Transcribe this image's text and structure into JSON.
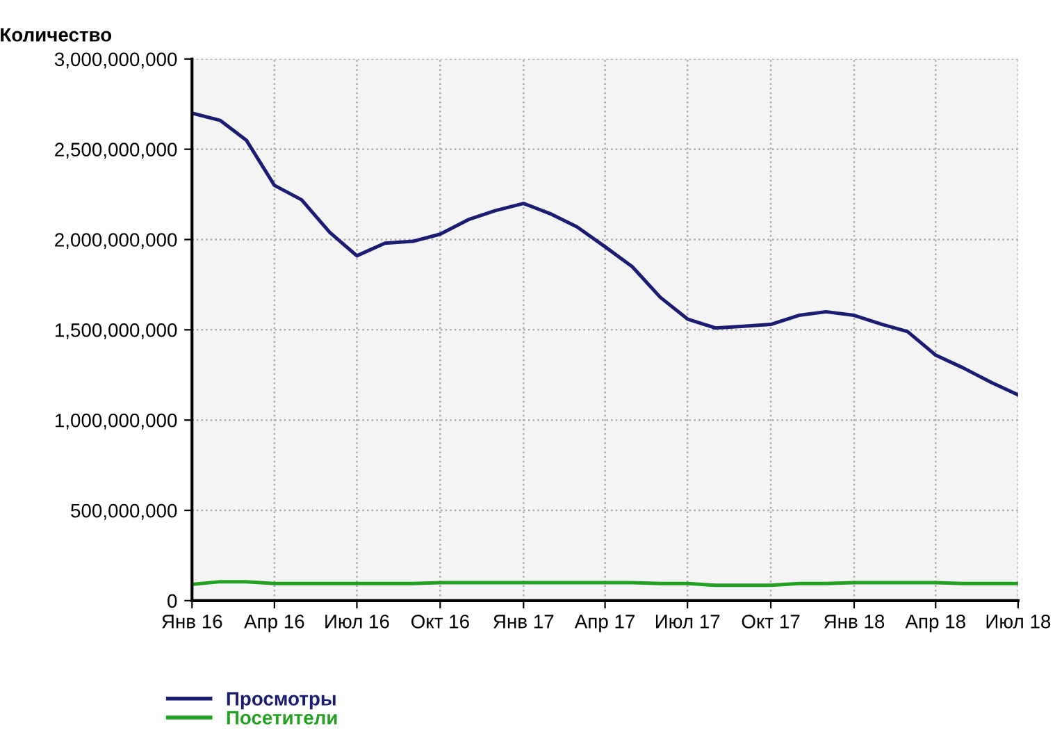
{
  "chart_data": {
    "type": "line",
    "ylabel": "Количество",
    "x": [
      "2016-01",
      "2016-02",
      "2016-03",
      "2016-04",
      "2016-05",
      "2016-06",
      "2016-07",
      "2016-08",
      "2016-09",
      "2016-10",
      "2016-11",
      "2016-12",
      "2017-01",
      "2017-02",
      "2017-03",
      "2017-04",
      "2017-05",
      "2017-06",
      "2017-07",
      "2017-08",
      "2017-09",
      "2017-10",
      "2017-11",
      "2017-12",
      "2018-01",
      "2018-02",
      "2018-03",
      "2018-04",
      "2018-05",
      "2018-06",
      "2018-07"
    ],
    "series": [
      {
        "name": "Просмотры",
        "color": "#1c1c72",
        "values": [
          2700000000,
          2660000000,
          2550000000,
          2300000000,
          2220000000,
          2040000000,
          1910000000,
          1980000000,
          1990000000,
          2030000000,
          2110000000,
          2160000000,
          2200000000,
          2140000000,
          2070000000,
          1960000000,
          1850000000,
          1680000000,
          1560000000,
          1510000000,
          1520000000,
          1530000000,
          1580000000,
          1600000000,
          1580000000,
          1530000000,
          1490000000,
          1360000000,
          1290000000,
          1210000000,
          1140000000
        ]
      },
      {
        "name": "Посетители",
        "color": "#22a022",
        "values": [
          90000000,
          105000000,
          105000000,
          95000000,
          95000000,
          95000000,
          95000000,
          95000000,
          95000000,
          100000000,
          100000000,
          100000000,
          100000000,
          100000000,
          100000000,
          100000000,
          100000000,
          95000000,
          95000000,
          85000000,
          85000000,
          85000000,
          95000000,
          95000000,
          100000000,
          100000000,
          100000000,
          100000000,
          95000000,
          95000000,
          95000000
        ]
      }
    ],
    "xlim": [
      "2016-01",
      "2018-07"
    ],
    "xticks": [
      {
        "value": "2016-01",
        "label": "Янв 16"
      },
      {
        "value": "2016-04",
        "label": "Апр 16"
      },
      {
        "value": "2016-07",
        "label": "Июл 16"
      },
      {
        "value": "2016-10",
        "label": "Окт 16"
      },
      {
        "value": "2017-01",
        "label": "Янв 17"
      },
      {
        "value": "2017-04",
        "label": "Апр 17"
      },
      {
        "value": "2017-07",
        "label": "Июл 17"
      },
      {
        "value": "2017-10",
        "label": "Окт 17"
      },
      {
        "value": "2018-01",
        "label": "Янв 18"
      },
      {
        "value": "2018-04",
        "label": "Апр 18"
      },
      {
        "value": "2018-07",
        "label": "Июл 18"
      }
    ],
    "ylim": [
      0,
      3000000000
    ],
    "yticks": [
      0,
      {
        "value": 500000000,
        "label": "500,000,000"
      },
      {
        "value": 1000000000,
        "label": "1,000,000,000"
      },
      {
        "value": 1500000000,
        "label": "1,500,000,000"
      },
      {
        "value": 2000000000,
        "label": "2,000,000,000"
      },
      {
        "value": 2500000000,
        "label": "2,500,000,000"
      },
      {
        "value": 3000000000,
        "label": "3,000,000,000"
      }
    ],
    "grid": true,
    "legend": "bottom left",
    "marker": "none",
    "line_style": "solid"
  }
}
